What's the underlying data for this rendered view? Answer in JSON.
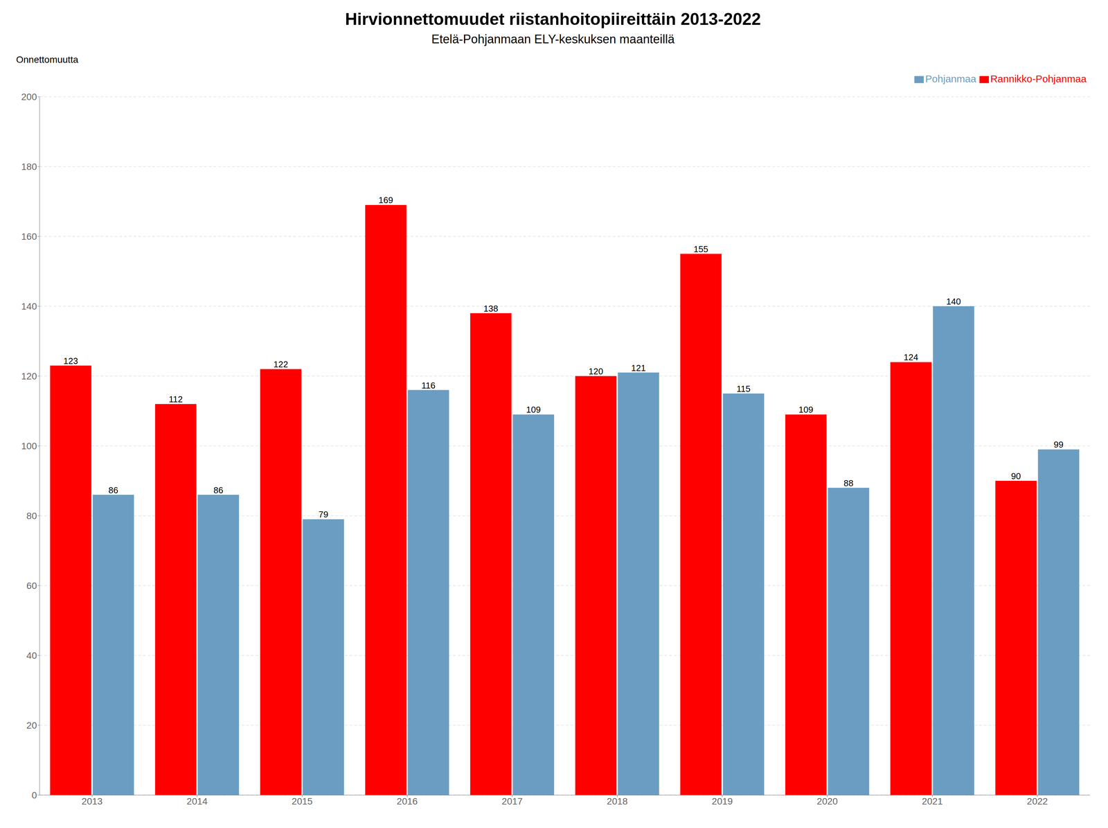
{
  "chart_data": {
    "type": "bar",
    "title": "Hirvionnettomuudet riistanhoitopiireittäin 2013-2022",
    "subtitle": "Etelä-Pohjanmaan ELY-keskuksen maanteillä",
    "ylabel": "Onnettomuutta",
    "categories": [
      "2013",
      "2014",
      "2015",
      "2016",
      "2017",
      "2018",
      "2019",
      "2020",
      "2021",
      "2022"
    ],
    "series": [
      {
        "name": "Rannikko-Pohjanmaa",
        "color": "#FF0000",
        "values": [
          123,
          112,
          122,
          169,
          138,
          120,
          155,
          109,
          124,
          90
        ]
      },
      {
        "name": "Pohjanmaa",
        "color": "#6B9DC2",
        "values": [
          86,
          86,
          79,
          116,
          109,
          121,
          115,
          88,
          140,
          99
        ]
      }
    ],
    "ylim": [
      0,
      200
    ],
    "yticks": [
      0,
      20,
      40,
      60,
      80,
      100,
      120,
      140,
      160,
      180,
      200
    ],
    "grid": true,
    "legend": "upper right",
    "data_labels": true
  }
}
